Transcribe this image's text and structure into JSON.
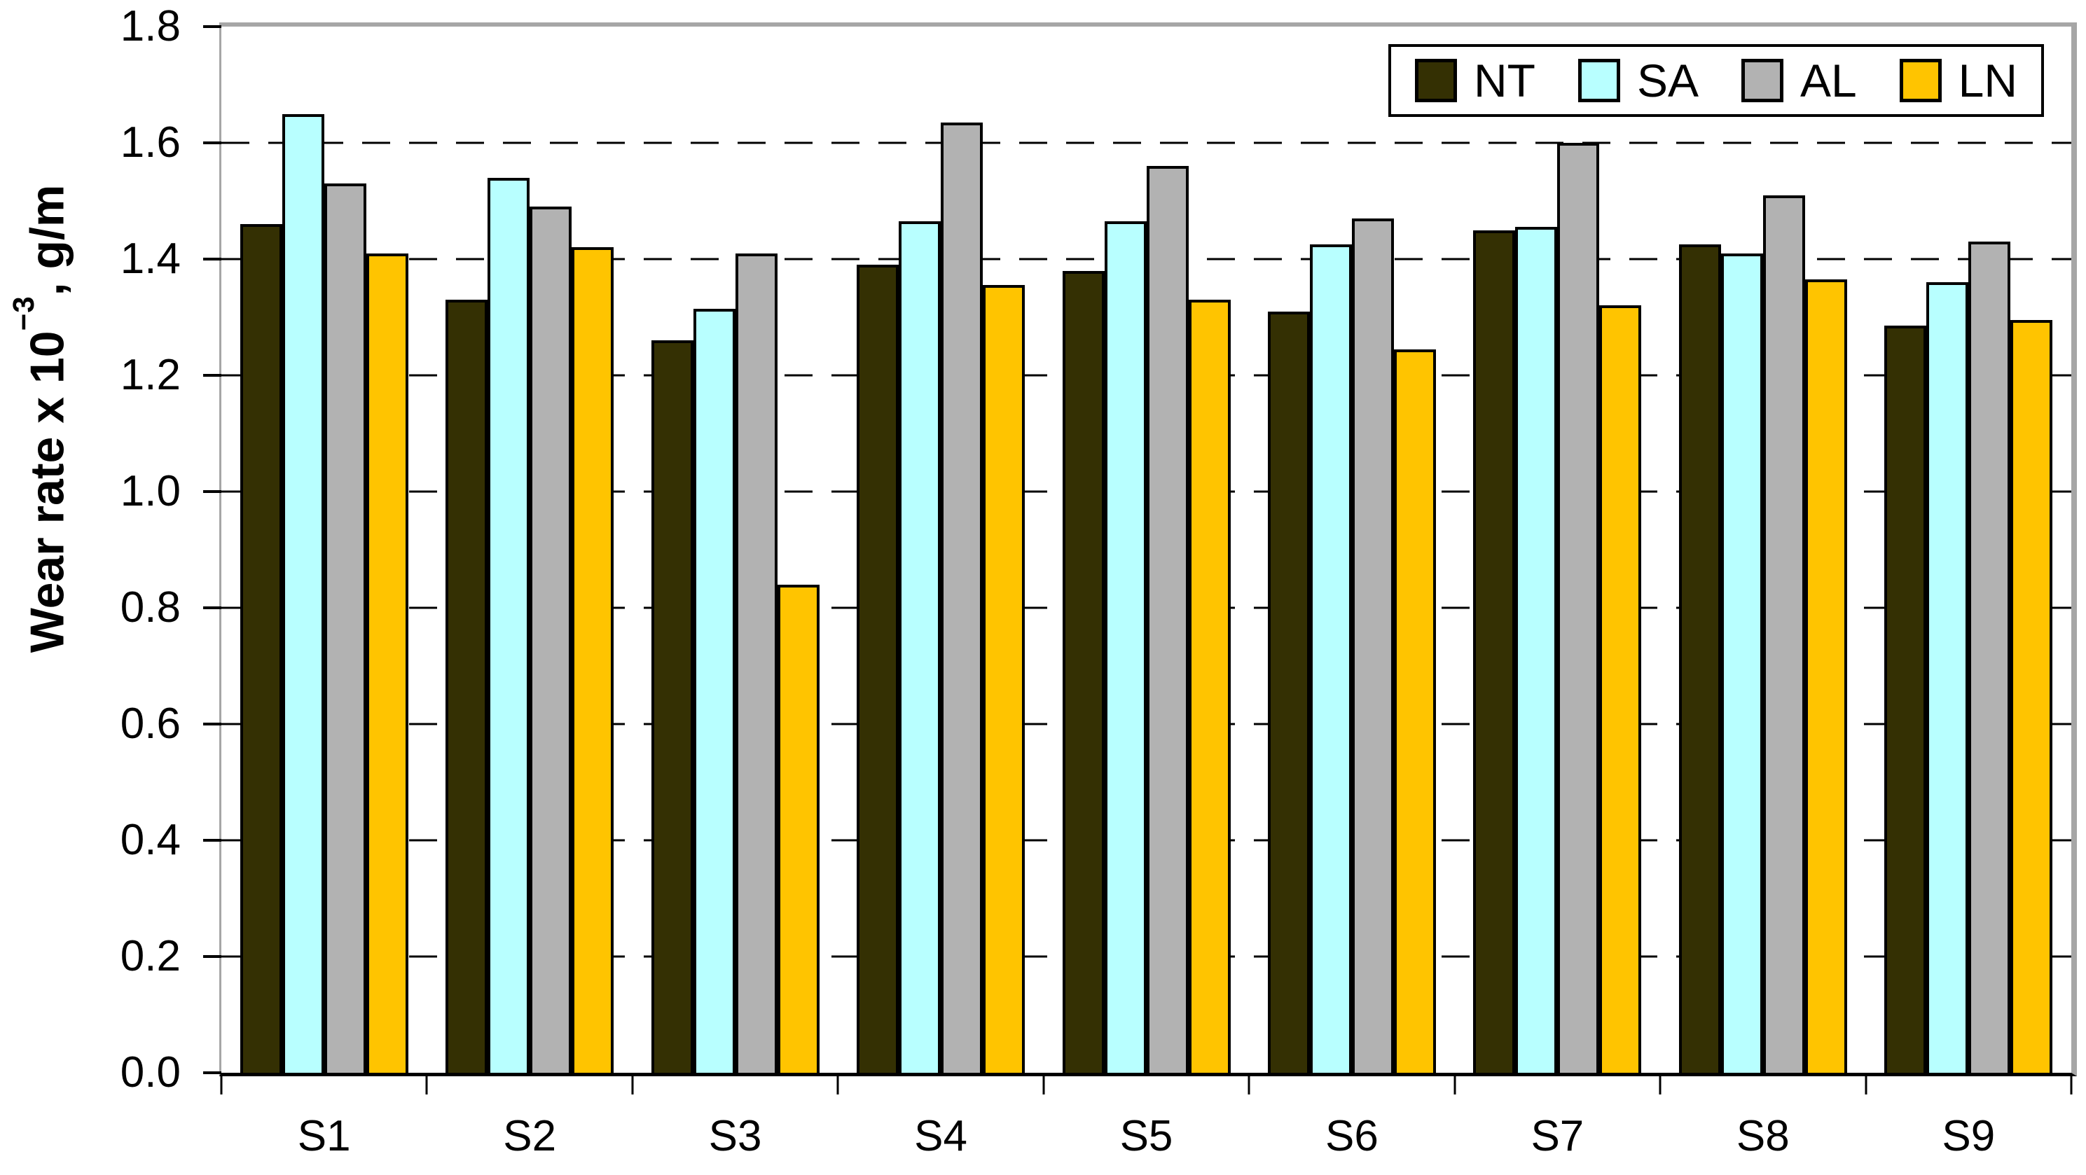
{
  "chart_data": {
    "type": "bar",
    "title": "",
    "categories": [
      "S1",
      "S2",
      "S3",
      "S4",
      "S5",
      "S6",
      "S7",
      "S8",
      "S9"
    ],
    "series": [
      {
        "name": "NT",
        "color": "#343003",
        "values": [
          1.46,
          1.33,
          1.26,
          1.39,
          1.38,
          1.31,
          1.45,
          1.425,
          1.285
        ]
      },
      {
        "name": "SA",
        "color": "#B8FFFF",
        "values": [
          1.65,
          1.54,
          1.315,
          1.465,
          1.465,
          1.425,
          1.455,
          1.41,
          1.36
        ]
      },
      {
        "name": "AL",
        "color": "#B2B2B2",
        "values": [
          1.53,
          1.49,
          1.41,
          1.635,
          1.56,
          1.47,
          1.6,
          1.51,
          1.43
        ]
      },
      {
        "name": "LN",
        "color": "#FFC400",
        "values": [
          1.41,
          1.42,
          0.84,
          1.355,
          1.33,
          1.245,
          1.32,
          1.365,
          1.295
        ]
      }
    ],
    "ylabel": "Wear rate x 10⁻³, g/m",
    "ylabel_parts": {
      "base": "Wear rate x 10",
      "sup": "−3",
      "unit": ", g/m"
    },
    "ylim": [
      0,
      1.8
    ],
    "ytick_step": 0.2,
    "ytick_labels": [
      "0.0",
      "0.2",
      "0.4",
      "0.6",
      "0.8",
      "1.0",
      "1.2",
      "1.4",
      "1.6",
      "1.8"
    ],
    "grid": "dashed horizontal gridlines at every 0.2, solid black baseline at 0.0, gray frame top/right",
    "legend_position": "top-right",
    "legend_labels": [
      "NT",
      "SA",
      "AL",
      "LN"
    ],
    "frame_color": "#A6A6A6",
    "bar_outline_color": "#000000"
  }
}
